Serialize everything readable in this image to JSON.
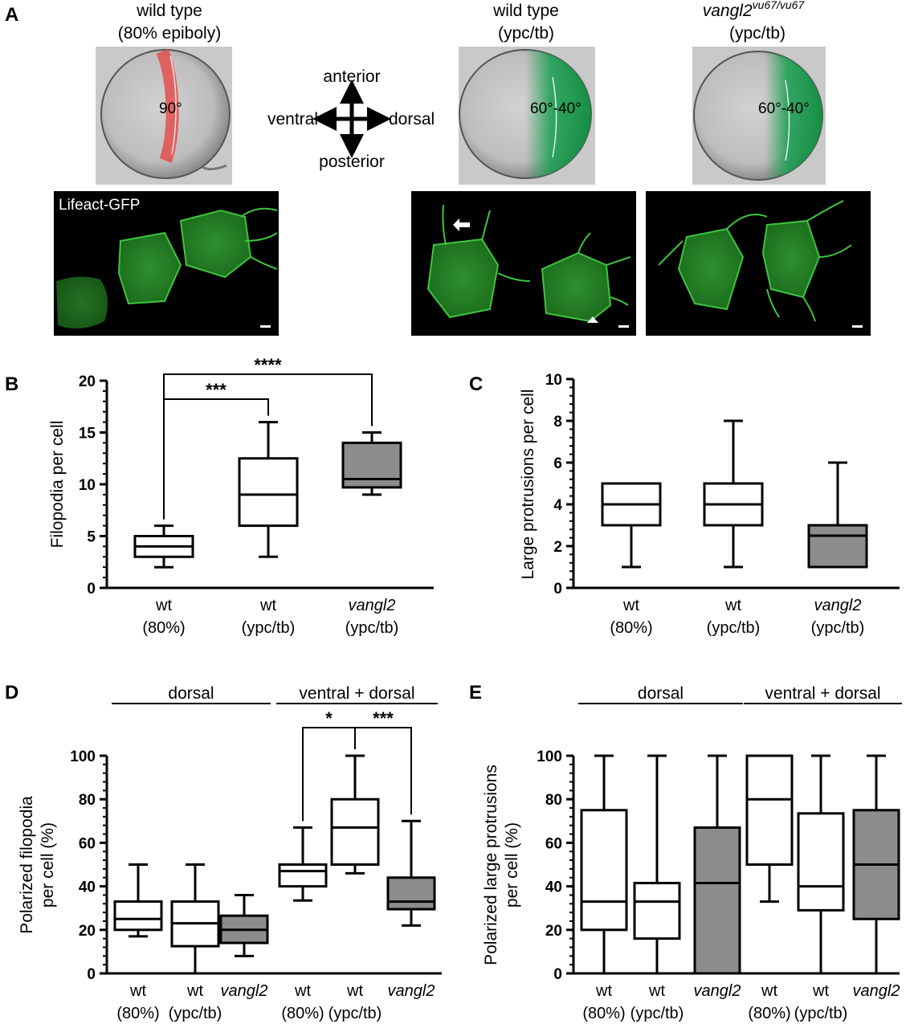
{
  "panel_a": {
    "letter": "A",
    "top_left": {
      "title_line1": "wild type",
      "title_line2": "(80% epiboly)",
      "angle": "90°"
    },
    "compass": {
      "anterior": "anterior",
      "posterior": "posterior",
      "ventral": "ventral",
      "dorsal": "dorsal"
    },
    "top_mid": {
      "title_line1": "wild type",
      "title_line2": "(ypc/tb)",
      "angle": "60°-40°"
    },
    "top_right": {
      "title_main": "vangl2",
      "title_sup": "vu67/vu67",
      "title_line2": "(ypc/tb)",
      "angle": "60°-40°"
    },
    "micrograph_label": "Lifeact-GFP"
  },
  "chart_data": [
    {
      "panel": "B",
      "type": "box",
      "ylabel": "Filopodia per cell",
      "ylim": [
        0,
        20
      ],
      "yticks": [
        "0",
        "5",
        "10",
        "15",
        "20"
      ],
      "categories": [
        {
          "line1": "wt",
          "line2": "(80%)",
          "italic": false
        },
        {
          "line1": "wt",
          "line2": "(ypc/tb)",
          "italic": false
        },
        {
          "line1": "vangl2",
          "line2": "(ypc/tb)",
          "italic": true
        }
      ],
      "boxes": [
        {
          "min": 2,
          "q1": 3,
          "median": 4,
          "q3": 5,
          "max": 6,
          "fill": "#ffffff"
        },
        {
          "min": 3,
          "q1": 6,
          "median": 9,
          "q3": 12.5,
          "max": 16,
          "fill": "#ffffff"
        },
        {
          "min": 9,
          "q1": 9.7,
          "median": 10.5,
          "q3": 14,
          "max": 15,
          "fill": "#8c8c8c"
        }
      ],
      "significance": [
        {
          "from": 0,
          "to": 1,
          "label": "***"
        },
        {
          "from": 0,
          "to": 2,
          "label": "****"
        }
      ]
    },
    {
      "panel": "C",
      "type": "box",
      "ylabel": "Large protrusions per cell",
      "ylim": [
        0,
        10
      ],
      "yticks": [
        "0",
        "2",
        "4",
        "6",
        "8",
        "10"
      ],
      "categories": [
        {
          "line1": "wt",
          "line2": "(80%)",
          "italic": false
        },
        {
          "line1": "wt",
          "line2": "(ypc/tb)",
          "italic": false
        },
        {
          "line1": "vangl2",
          "line2": "(ypc/tb)",
          "italic": true
        }
      ],
      "boxes": [
        {
          "min": 1,
          "q1": 3,
          "median": 4,
          "q3": 5,
          "max": 5,
          "fill": "#ffffff"
        },
        {
          "min": 1,
          "q1": 3,
          "median": 4,
          "q3": 5,
          "max": 8,
          "fill": "#ffffff"
        },
        {
          "min": 1,
          "q1": 1,
          "median": 2.5,
          "q3": 3,
          "max": 6,
          "fill": "#8c8c8c"
        }
      ],
      "significance": []
    },
    {
      "panel": "D",
      "type": "box",
      "ylabel_line1": "Polarized filopodia",
      "ylabel_line2": "per cell (%)",
      "ylim": [
        0,
        100
      ],
      "yticks": [
        "0",
        "20",
        "40",
        "60",
        "80",
        "100"
      ],
      "groups": [
        {
          "label": "dorsal",
          "from": 0,
          "to": 2
        },
        {
          "label": "ventral + dorsal",
          "from": 3,
          "to": 5
        }
      ],
      "categories": [
        {
          "line1": "wt",
          "line2": "(80%)",
          "italic": false
        },
        {
          "line1": "wt",
          "line2": "(ypc/tb)",
          "italic": false
        },
        {
          "line1": "vangl2",
          "line2": "",
          "italic": true
        },
        {
          "line1": "wt",
          "line2": "(80%)",
          "italic": false
        },
        {
          "line1": "wt",
          "line2": "(ypc/tb)",
          "italic": false
        },
        {
          "line1": "vangl2",
          "line2": "",
          "italic": true
        }
      ],
      "boxes": [
        {
          "min": 17,
          "q1": 20,
          "median": 25,
          "q3": 33,
          "max": 50,
          "fill": "#ffffff"
        },
        {
          "min": 0,
          "q1": 12.5,
          "median": 23,
          "q3": 33,
          "max": 50,
          "fill": "#ffffff"
        },
        {
          "min": 8,
          "q1": 14,
          "median": 20,
          "q3": 26.5,
          "max": 36,
          "fill": "#8c8c8c"
        },
        {
          "min": 33.5,
          "q1": 40,
          "median": 47,
          "q3": 50,
          "max": 67,
          "fill": "#ffffff"
        },
        {
          "min": 46,
          "q1": 50,
          "median": 67,
          "q3": 80,
          "max": 100,
          "fill": "#ffffff"
        },
        {
          "min": 22,
          "q1": 29.5,
          "median": 33,
          "q3": 44,
          "max": 70,
          "fill": "#8c8c8c"
        }
      ],
      "significance": [
        {
          "from": 3,
          "to": 4,
          "label": "*"
        },
        {
          "from": 4,
          "to": 5,
          "label": "***"
        }
      ]
    },
    {
      "panel": "E",
      "type": "box",
      "ylabel_line1": "Polarized large protrusions",
      "ylabel_line2": "per cell (%)",
      "ylim": [
        0,
        100
      ],
      "yticks": [
        "0",
        "20",
        "40",
        "60",
        "80",
        "100"
      ],
      "groups": [
        {
          "label": "dorsal",
          "from": 0,
          "to": 2
        },
        {
          "label": "ventral + dorsal",
          "from": 3,
          "to": 5
        }
      ],
      "categories": [
        {
          "line1": "wt",
          "line2": "(80%)",
          "italic": false
        },
        {
          "line1": "wt",
          "line2": "(ypc/tb)",
          "italic": false
        },
        {
          "line1": "vangl2",
          "line2": "",
          "italic": true
        },
        {
          "line1": "wt",
          "line2": "(80%)",
          "italic": false
        },
        {
          "line1": "wt",
          "line2": "(ypc/tb)",
          "italic": false
        },
        {
          "line1": "vangl2",
          "line2": "",
          "italic": true
        }
      ],
      "boxes": [
        {
          "min": 0,
          "q1": 20,
          "median": 33,
          "q3": 75,
          "max": 100,
          "fill": "#ffffff"
        },
        {
          "min": 0,
          "q1": 16,
          "median": 33,
          "q3": 41.5,
          "max": 100,
          "fill": "#ffffff"
        },
        {
          "min": 0,
          "q1": 0,
          "median": 41.5,
          "q3": 67,
          "max": 100,
          "fill": "#8c8c8c"
        },
        {
          "min": 33,
          "q1": 50,
          "median": 80,
          "q3": 100,
          "max": 100,
          "fill": "#ffffff"
        },
        {
          "min": 0,
          "q1": 29,
          "median": 40,
          "q3": 73.5,
          "max": 100,
          "fill": "#ffffff"
        },
        {
          "min": 0,
          "q1": 25,
          "median": 50,
          "q3": 75,
          "max": 100,
          "fill": "#8c8c8c"
        }
      ],
      "significance": []
    }
  ]
}
